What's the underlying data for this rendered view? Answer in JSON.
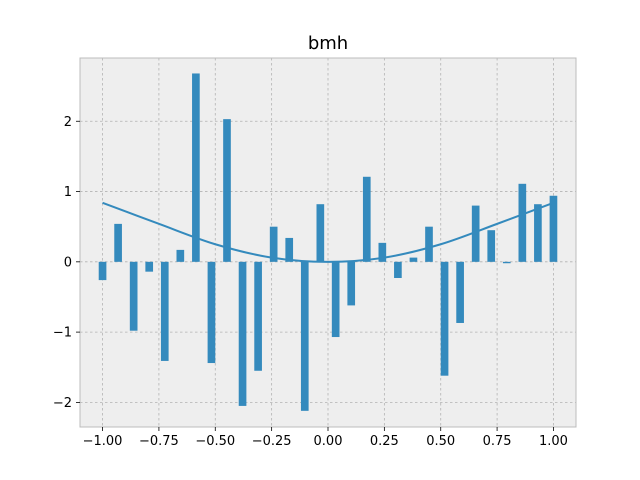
{
  "chart_data": {
    "type": "bar",
    "title": "bmh",
    "xlabel": "",
    "ylabel": "",
    "xlim": [
      -1.1,
      1.1
    ],
    "ylim": [
      -2.35,
      2.9
    ],
    "xticks": [
      -1.0,
      -0.75,
      -0.5,
      -0.25,
      0.0,
      0.25,
      0.5,
      0.75,
      1.0
    ],
    "xtick_labels": [
      "−1.00",
      "−0.75",
      "−0.50",
      "−0.25",
      "0.00",
      "0.25",
      "0.50",
      "0.75",
      "1.00"
    ],
    "yticks": [
      -2,
      -1,
      0,
      1,
      2
    ],
    "ytick_labels": [
      "−2",
      "−1",
      "0",
      "1",
      "2"
    ],
    "grid": true,
    "series": [
      {
        "type": "bar",
        "color": "#348ABD",
        "bar_width": 0.034,
        "x": [
          -1.0,
          -0.931,
          -0.862,
          -0.793,
          -0.724,
          -0.655,
          -0.586,
          -0.517,
          -0.448,
          -0.379,
          -0.31,
          -0.241,
          -0.172,
          -0.103,
          -0.034,
          0.034,
          0.103,
          0.172,
          0.241,
          0.31,
          0.379,
          0.448,
          0.517,
          0.586,
          0.655,
          0.724,
          0.793,
          0.862,
          0.931,
          1.0
        ],
        "values": [
          -0.26,
          0.54,
          -0.98,
          -0.14,
          -1.41,
          0.17,
          2.68,
          -1.44,
          2.03,
          -2.05,
          -1.55,
          0.5,
          0.34,
          -2.12,
          0.82,
          -1.07,
          -0.62,
          1.21,
          0.27,
          -0.23,
          0.06,
          0.5,
          -1.62,
          -0.87,
          0.8,
          0.45,
          -0.02,
          1.11,
          0.82,
          0.94
        ]
      },
      {
        "type": "line",
        "color": "#348ABD",
        "x": [
          -1.0,
          -0.75,
          -0.5,
          -0.25,
          0.0,
          0.25,
          0.5,
          0.75,
          1.0
        ],
        "values": [
          0.84,
          0.54,
          0.25,
          0.06,
          0.0,
          0.06,
          0.25,
          0.54,
          0.84
        ]
      }
    ],
    "style": {
      "axes_facecolor": "#EEEEEE",
      "axes_edgecolor": "#BCBCBC",
      "grid_color": "#B2B2B2"
    }
  }
}
